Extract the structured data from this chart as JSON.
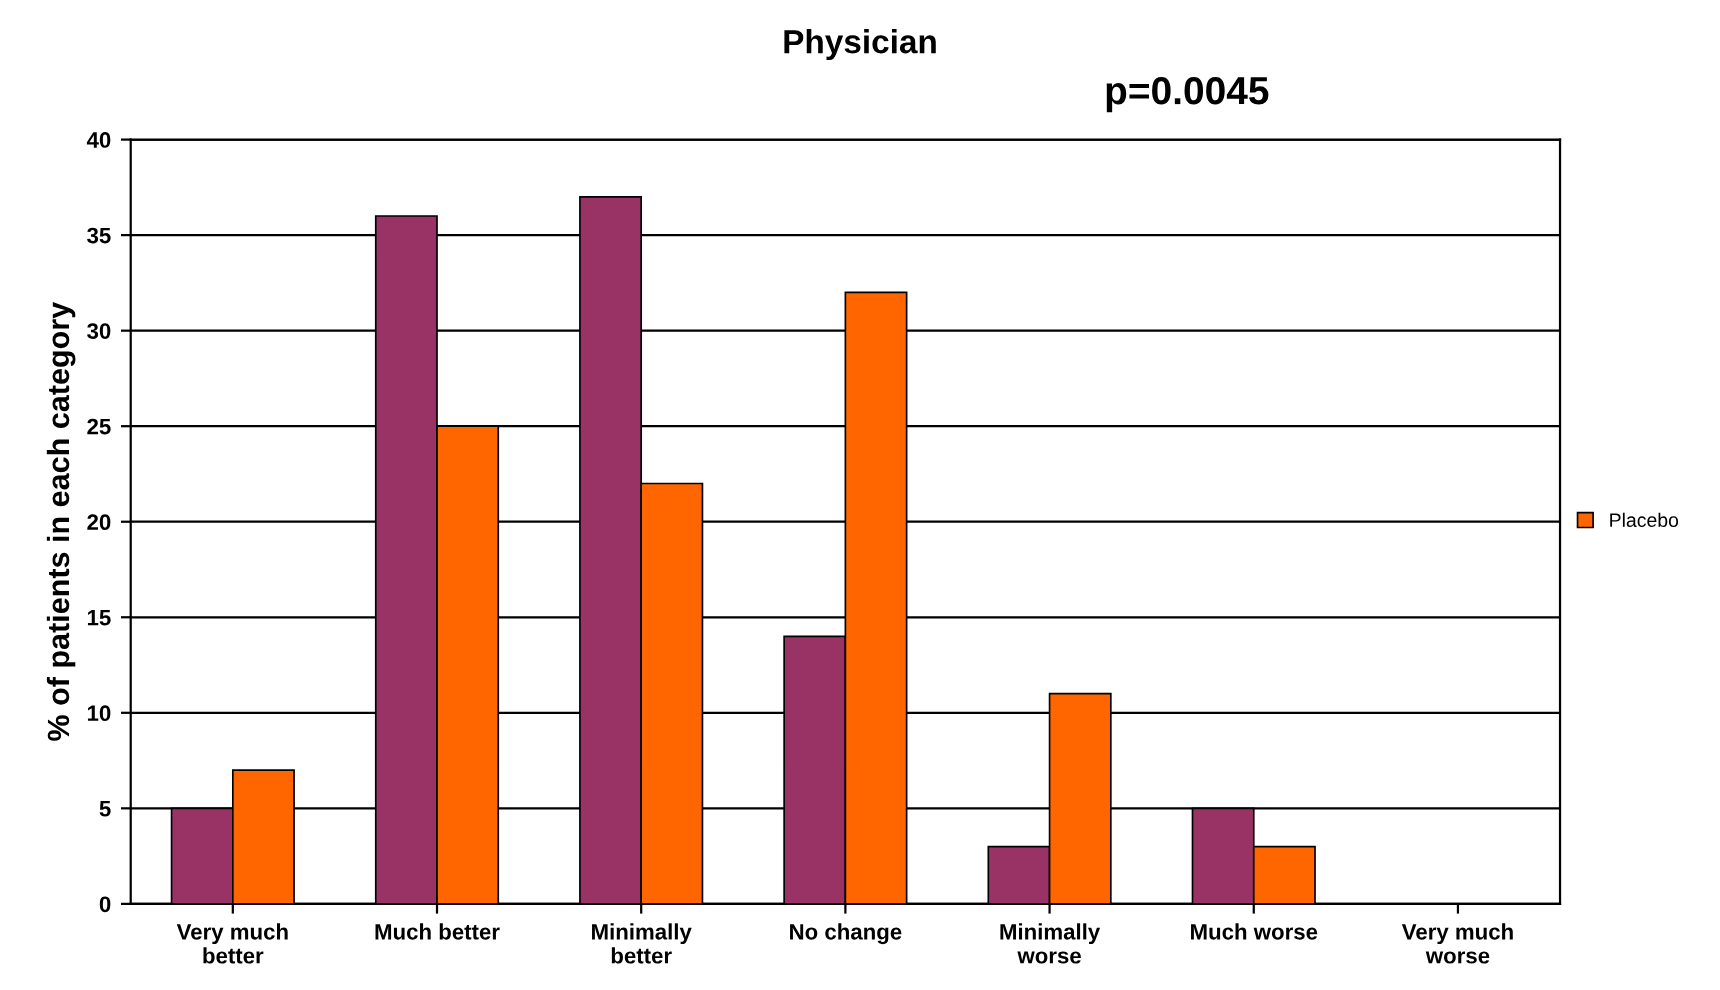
{
  "chart_data": {
    "type": "bar",
    "title": "Physician",
    "ylabel": "% of patients in each category",
    "annotations": [
      "p=0.0045"
    ],
    "categories": [
      "Very much\nbetter",
      "Much better",
      "Minimally\nbetter",
      "No change",
      "Minimally\nworse",
      "Much worse",
      "Very much\nworse"
    ],
    "series": [
      {
        "color": "#993366",
        "values": [
          5,
          36,
          37,
          14,
          3,
          5,
          null
        ]
      },
      {
        "name": "Placebo",
        "color": "#ff6600",
        "values": [
          7,
          25,
          22,
          32,
          11,
          3,
          null
        ]
      }
    ],
    "ylim": [
      0,
      40
    ],
    "yticks": [
      0,
      5,
      10,
      15,
      20,
      25,
      30,
      35,
      40
    ],
    "grid": "y",
    "legend": "right"
  }
}
